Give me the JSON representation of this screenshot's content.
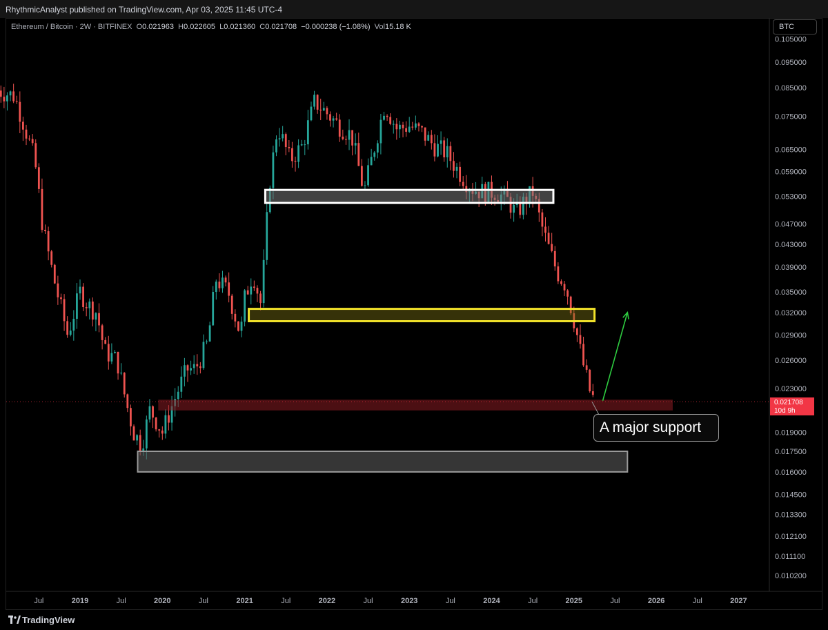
{
  "header": {
    "publisher_line": "RhythmicAnalyst published on TradingView.com, Apr 03, 2025 11:45 UTC-4"
  },
  "legend": {
    "symbol": "Ethereum / Bitcoin · 2W · BITFINEX",
    "open_label": "O",
    "open": "0.021963",
    "high_label": "H",
    "high": "0.022605",
    "low_label": "L",
    "low": "0.021360",
    "close_label": "C",
    "close": "0.021708",
    "change": "−0.000238 (−1.08%)",
    "vol_label": "Vol",
    "vol": "15.18 K"
  },
  "currency_button": "BTC",
  "last_price": {
    "value": "0.021708",
    "countdown": "10d 9h"
  },
  "annotation_text": "A major support",
  "footer": {
    "brand": "TradingView"
  },
  "colors": {
    "up": "#26a69a",
    "down": "#ef5350",
    "grid": "#111111",
    "resistance_box": "#ffffff",
    "yellow_box": "#f0e12a",
    "support_box": "#8a1c22",
    "demand_box": "#7a7a7a",
    "arrow": "#2ecc40"
  },
  "chart_data": {
    "type": "candlestick",
    "scale": "log",
    "yticks": [
      "0.105000",
      "0.095000",
      "0.085000",
      "0.075000",
      "0.065000",
      "0.059000",
      "0.053000",
      "0.047000",
      "0.043000",
      "0.039000",
      "0.035000",
      "0.032000",
      "0.029000",
      "0.026000",
      "0.023000",
      "0.019000",
      "0.017500",
      "0.016000",
      "0.014500",
      "0.013300",
      "0.012100",
      "0.011100",
      "0.010200"
    ],
    "xticks": [
      {
        "label": "Jul",
        "t": 2018.5
      },
      {
        "label": "2019",
        "t": 2019.0
      },
      {
        "label": "Jul",
        "t": 2019.5
      },
      {
        "label": "2020",
        "t": 2020.0
      },
      {
        "label": "Jul",
        "t": 2020.5
      },
      {
        "label": "2021",
        "t": 2021.0
      },
      {
        "label": "Jul",
        "t": 2021.5
      },
      {
        "label": "2022",
        "t": 2022.0
      },
      {
        "label": "Jul",
        "t": 2022.5
      },
      {
        "label": "2023",
        "t": 2023.0
      },
      {
        "label": "Jul",
        "t": 2023.5
      },
      {
        "label": "2024",
        "t": 2024.0
      },
      {
        "label": "Jul",
        "t": 2024.5
      },
      {
        "label": "2025",
        "t": 2025.0
      },
      {
        "label": "Jul",
        "t": 2025.5
      },
      {
        "label": "2026",
        "t": 2026.0
      },
      {
        "label": "Jul",
        "t": 2026.5
      },
      {
        "label": "2027",
        "t": 2027.0
      }
    ],
    "price_path": [
      [
        2018.0,
        0.084
      ],
      [
        2018.2,
        0.082
      ],
      [
        2018.3,
        0.074
      ],
      [
        2018.45,
        0.062
      ],
      [
        2018.55,
        0.046
      ],
      [
        2018.7,
        0.036
      ],
      [
        2018.85,
        0.029
      ],
      [
        2019.0,
        0.035
      ],
      [
        2019.1,
        0.033
      ],
      [
        2019.2,
        0.032
      ],
      [
        2019.3,
        0.027
      ],
      [
        2019.45,
        0.026
      ],
      [
        2019.55,
        0.022
      ],
      [
        2019.65,
        0.019
      ],
      [
        2019.75,
        0.018
      ],
      [
        2019.85,
        0.021
      ],
      [
        2020.0,
        0.019
      ],
      [
        2020.1,
        0.021
      ],
      [
        2020.2,
        0.023
      ],
      [
        2020.3,
        0.025
      ],
      [
        2020.4,
        0.025
      ],
      [
        2020.55,
        0.028
      ],
      [
        2020.65,
        0.037
      ],
      [
        2020.8,
        0.035
      ],
      [
        2020.95,
        0.029
      ],
      [
        2021.0,
        0.034
      ],
      [
        2021.1,
        0.038
      ],
      [
        2021.2,
        0.033
      ],
      [
        2021.3,
        0.056
      ],
      [
        2021.4,
        0.072
      ],
      [
        2021.55,
        0.062
      ],
      [
        2021.7,
        0.066
      ],
      [
        2021.85,
        0.08
      ],
      [
        2022.0,
        0.076
      ],
      [
        2022.15,
        0.072
      ],
      [
        2022.3,
        0.069
      ],
      [
        2022.45,
        0.054
      ],
      [
        2022.55,
        0.063
      ],
      [
        2022.7,
        0.079
      ],
      [
        2022.85,
        0.071
      ],
      [
        2023.0,
        0.072
      ],
      [
        2023.15,
        0.07
      ],
      [
        2023.3,
        0.066
      ],
      [
        2023.45,
        0.064
      ],
      [
        2023.6,
        0.059
      ],
      [
        2023.75,
        0.055
      ],
      [
        2023.9,
        0.054
      ],
      [
        2024.05,
        0.054
      ],
      [
        2024.2,
        0.052
      ],
      [
        2024.3,
        0.049
      ],
      [
        2024.4,
        0.052
      ],
      [
        2024.5,
        0.054
      ],
      [
        2024.6,
        0.047
      ],
      [
        2024.7,
        0.042
      ],
      [
        2024.8,
        0.038
      ],
      [
        2024.9,
        0.036
      ],
      [
        2025.0,
        0.031
      ],
      [
        2025.1,
        0.026
      ],
      [
        2025.2,
        0.0225
      ],
      [
        2025.26,
        0.0217
      ]
    ],
    "annotations": {
      "resistance_zone": {
        "t0": 2021.25,
        "t1": 2024.75,
        "p0": 0.0515,
        "p1": 0.0545
      },
      "yellow_zone": {
        "t0": 2021.05,
        "t1": 2025.25,
        "p0": 0.0308,
        "p1": 0.0325
      },
      "support_zone": {
        "t0": 2019.95,
        "t1": 2026.2,
        "p0": 0.0209,
        "p1": 0.0219
      },
      "demand_zone": {
        "t0": 2019.7,
        "t1": 2025.65,
        "p0": 0.016,
        "p1": 0.0175
      },
      "arrow": {
        "t0": 2025.35,
        "p0": 0.0218,
        "t1": 2025.65,
        "p1": 0.032
      }
    }
  }
}
